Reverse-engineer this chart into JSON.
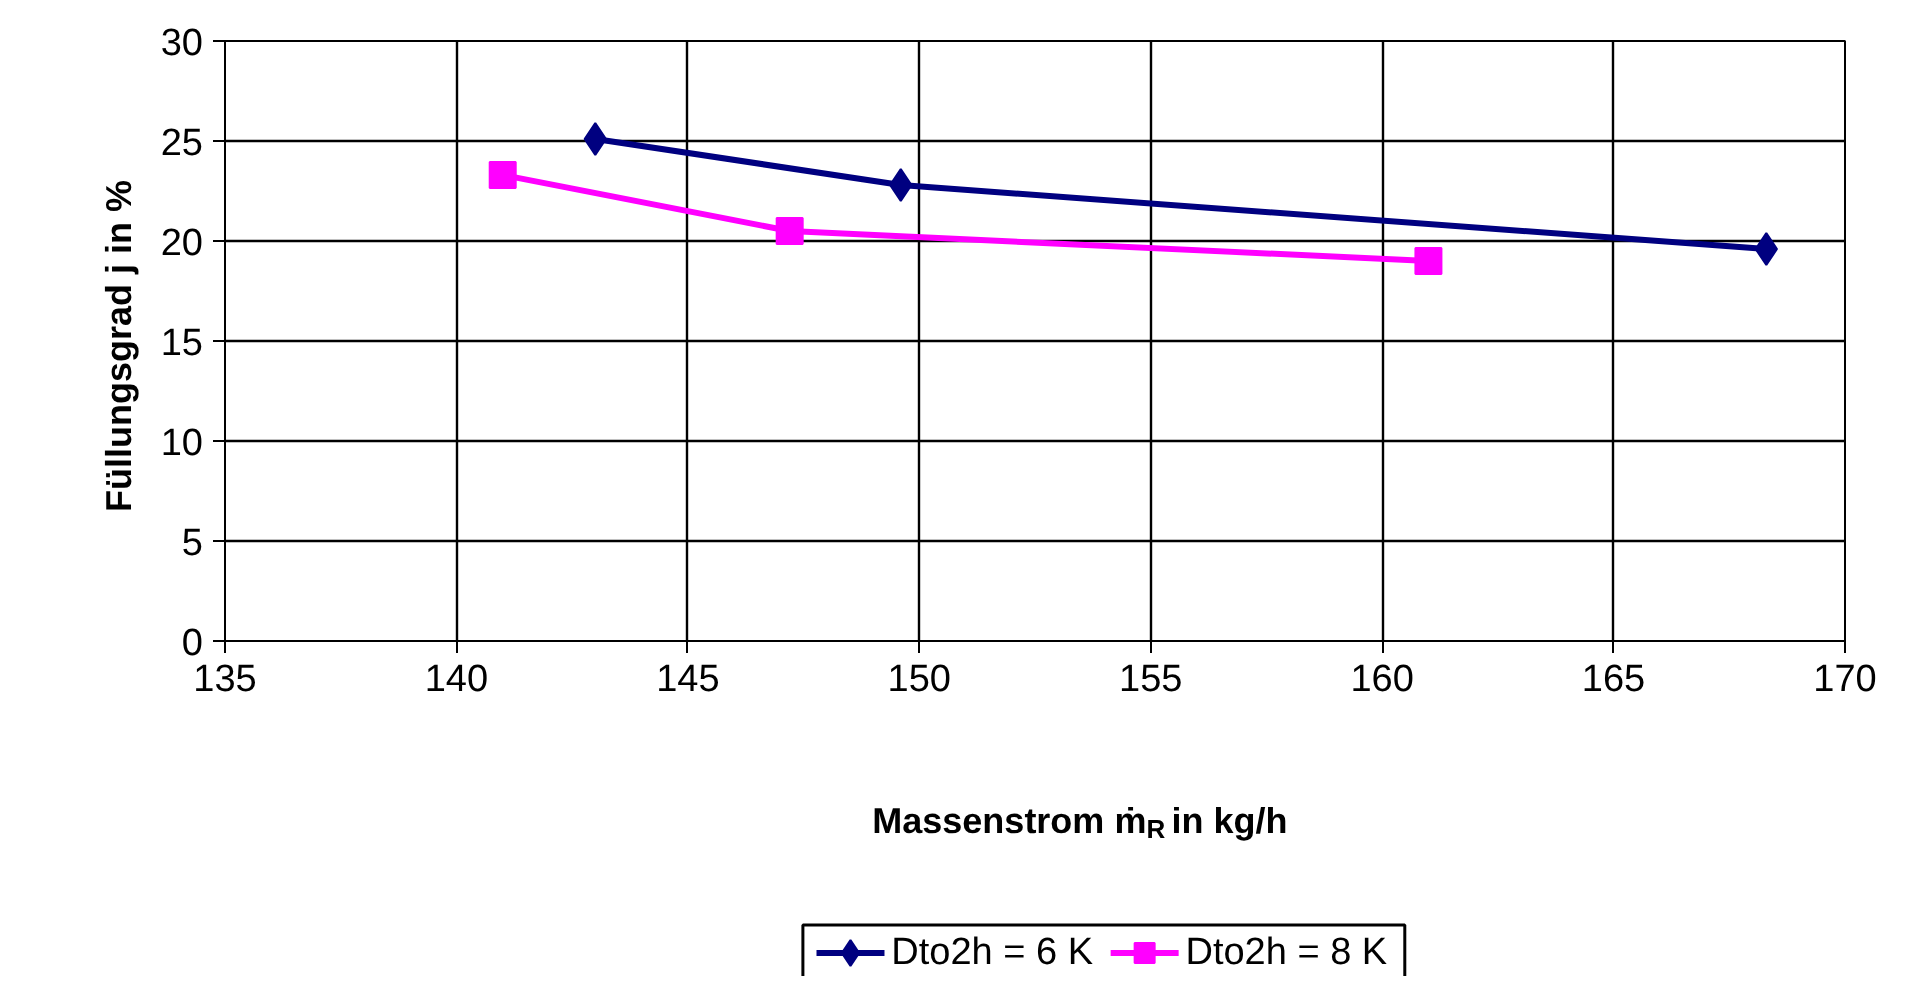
{
  "chart_data": {
    "type": "line",
    "xlabel": "Massenstrom ṁ$_{R}$ in kg/h",
    "ylabel": "Füllungsgrad j  in %",
    "xlim": [
      135,
      170
    ],
    "xticks": [
      135,
      140,
      145,
      150,
      155,
      160,
      165,
      170
    ],
    "ylim": [
      0,
      30
    ],
    "yticks": [
      0,
      5,
      10,
      15,
      20,
      25,
      30
    ],
    "grid": true,
    "legend": "bottom",
    "series": [
      {
        "name": "Dto2h = 6 K",
        "color": "#000080",
        "marker": "diamond",
        "x": [
          143.0,
          149.6,
          168.3
        ],
        "values": [
          25.1,
          22.8,
          19.6
        ]
      },
      {
        "name": "Dto2h = 8 K",
        "color": "#ff00ff",
        "marker": "square",
        "x": [
          141.0,
          147.2,
          161.0
        ],
        "values": [
          23.3,
          20.5,
          19.0
        ]
      }
    ]
  }
}
